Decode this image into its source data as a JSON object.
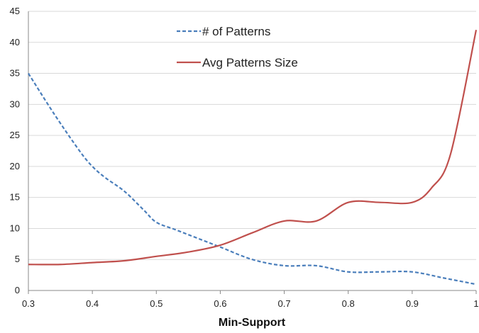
{
  "chart_data": {
    "type": "line",
    "title": "",
    "xlabel": "Min-Support",
    "ylabel": "",
    "xlim": [
      0.3,
      1
    ],
    "ylim": [
      0,
      45
    ],
    "x_ticks": [
      "0.3",
      "0.4",
      "0.5",
      "0.6",
      "0.7",
      "0.8",
      "0.9",
      "1"
    ],
    "y_ticks": [
      "0",
      "5",
      "10",
      "15",
      "20",
      "25",
      "30",
      "35",
      "40",
      "45"
    ],
    "grid": "horizontal",
    "legend_position": "top-center",
    "series": [
      {
        "name": "# of Patterns",
        "color": "#4a7ebb",
        "style": "dashed",
        "points": [
          [
            0.3,
            35.0
          ],
          [
            0.34,
            28.5
          ],
          [
            0.38,
            22.5
          ],
          [
            0.4,
            20.0
          ],
          [
            0.42,
            18.2
          ],
          [
            0.45,
            16.0
          ],
          [
            0.48,
            13.0
          ],
          [
            0.5,
            11.0
          ],
          [
            0.53,
            9.8
          ],
          [
            0.56,
            8.6
          ],
          [
            0.6,
            7.0
          ],
          [
            0.65,
            5.0
          ],
          [
            0.7,
            4.0
          ],
          [
            0.75,
            4.0
          ],
          [
            0.8,
            3.0
          ],
          [
            0.85,
            3.0
          ],
          [
            0.9,
            3.0
          ],
          [
            0.95,
            2.0
          ],
          [
            1.0,
            1.0
          ]
        ]
      },
      {
        "name": "Avg Patterns Size",
        "color": "#c0504d",
        "style": "solid",
        "points": [
          [
            0.3,
            4.2
          ],
          [
            0.35,
            4.2
          ],
          [
            0.4,
            4.5
          ],
          [
            0.45,
            4.8
          ],
          [
            0.5,
            5.5
          ],
          [
            0.55,
            6.2
          ],
          [
            0.6,
            7.3
          ],
          [
            0.65,
            9.3
          ],
          [
            0.7,
            11.2
          ],
          [
            0.75,
            11.2
          ],
          [
            0.8,
            14.2
          ],
          [
            0.85,
            14.2
          ],
          [
            0.9,
            14.2
          ],
          [
            0.93,
            16.5
          ],
          [
            0.96,
            22.0
          ],
          [
            1.0,
            42.0
          ]
        ]
      }
    ]
  }
}
